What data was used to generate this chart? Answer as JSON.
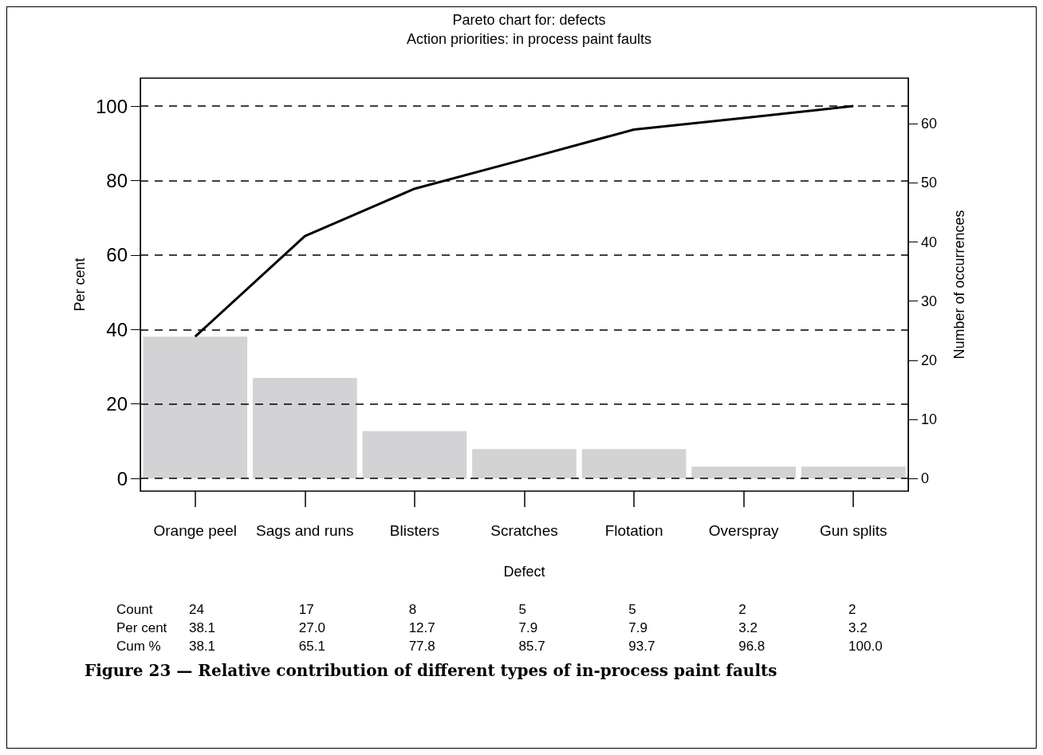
{
  "chart_data": {
    "type": "bar",
    "title": "Pareto chart for: defects",
    "subtitle": "Action priorities: in process paint faults",
    "xlabel": "Defect",
    "ylabel": "Per cent",
    "y2label": "Number of occurrences",
    "categories": [
      "Orange peel",
      "Sags and runs",
      "Blisters",
      "Scratches",
      "Flotation",
      "Overspray",
      "Gun splits"
    ],
    "series": [
      {
        "color": "#d3d3d5",
        "values": [
          38.1,
          27.0,
          12.7,
          7.9,
          7.9,
          3.2,
          3.2
        ],
        "value_labels": [
          "38.1",
          "27.0",
          "12.7",
          "7.9",
          "7.9",
          "3.2",
          "3.2"
        ]
      },
      {
        "type": "line",
        "color": "#000000",
        "values": [
          38.1,
          65.1,
          77.8,
          85.7,
          93.7,
          96.8,
          100.0
        ],
        "value_labels": [
          "38.1",
          "65.1",
          "77.8",
          "85.7",
          "93.7",
          "96.8",
          "100.0"
        ]
      }
    ],
    "ylim": [
      -3.4,
      107.5
    ],
    "yticks": [
      0,
      20,
      40,
      60,
      80,
      100
    ],
    "y2lim": [
      -2.142,
      67.725
    ],
    "y2ticks": [
      0,
      10,
      20,
      30,
      40,
      50,
      60
    ],
    "grid": "y",
    "marker": "none",
    "data_labels": true,
    "annotations": [
      "Count",
      "24",
      "17",
      "8",
      "5",
      "5",
      "2",
      "2",
      "Per cent",
      "Cum %",
      "Figure 23 — Relative contribution of different types of in-process paint faults"
    ]
  }
}
